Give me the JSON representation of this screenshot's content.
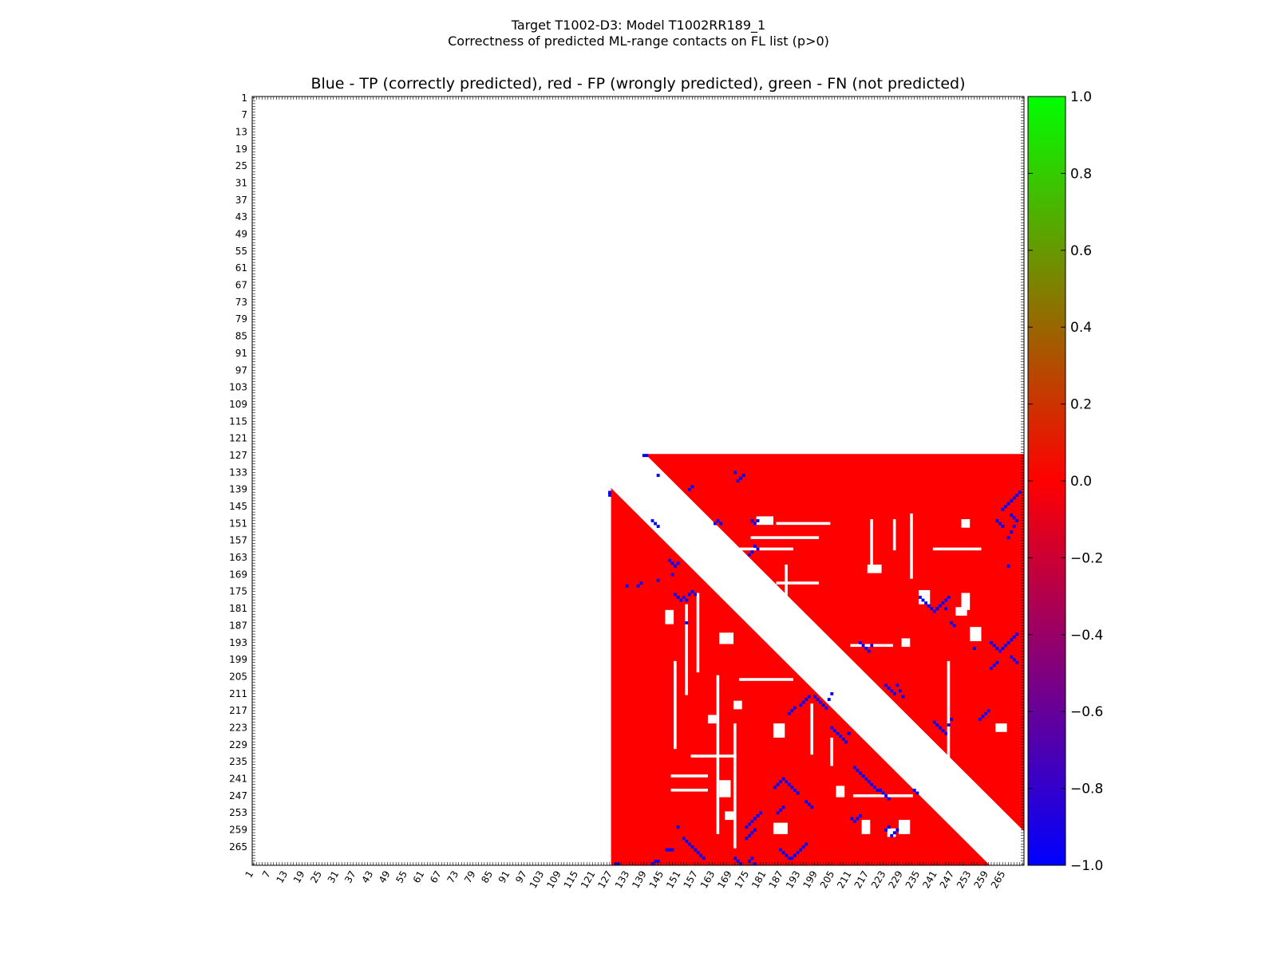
{
  "suptitle": {
    "line1": "Target T1002-D3: Model T1002RR189_1",
    "line2": "Correctness of predicted ML-range contacts on FL list (p>0)"
  },
  "chart_data": {
    "type": "heatmap",
    "title": "Blue - TP (correctly predicted), red - FP (wrongly predicted), green - FN (not predicted)",
    "xlabel": "",
    "ylabel": "",
    "x_range": [
      1,
      271
    ],
    "y_range": [
      1,
      271
    ],
    "tick_labels": [
      1,
      7,
      13,
      19,
      25,
      31,
      37,
      43,
      49,
      55,
      61,
      67,
      73,
      79,
      85,
      91,
      97,
      103,
      109,
      115,
      121,
      127,
      133,
      139,
      145,
      151,
      157,
      163,
      169,
      175,
      181,
      187,
      193,
      199,
      205,
      211,
      217,
      223,
      229,
      235,
      241,
      247,
      253,
      259,
      265
    ],
    "region_start": 127,
    "region_end": 271,
    "min_separation": 12,
    "colorbar": {
      "min": -1.0,
      "max": 1.0,
      "ticks": [
        "1.0",
        "0.8",
        "0.6",
        "0.4",
        "0.2",
        "0.0",
        "−0.2",
        "−0.4",
        "−0.6",
        "−0.8",
        "−1.0"
      ],
      "colors": [
        "#0000ff",
        "#ff0000",
        "#00ff00"
      ]
    },
    "categories": {
      "TP": {
        "value": -1,
        "color": "#0000ff"
      },
      "FP": {
        "value": 0,
        "color": "#ff0000"
      },
      "FN": {
        "value": 1,
        "color": "#00ff00"
      }
    },
    "white_blobs": [
      [
        178,
        149,
        6,
        3
      ],
      [
        165,
        190,
        5,
        4
      ],
      [
        146,
        182,
        3,
        5
      ],
      [
        165,
        242,
        4,
        6
      ],
      [
        184,
        222,
        4,
        5
      ],
      [
        184,
        257,
        5,
        4
      ],
      [
        217,
        166,
        5,
        3
      ],
      [
        215,
        256,
        3,
        5
      ],
      [
        235,
        175,
        4,
        5
      ],
      [
        248,
        181,
        4,
        3
      ],
      [
        253,
        188,
        4,
        5
      ],
      [
        250,
        176,
        3,
        6
      ],
      [
        240,
        235,
        3,
        4
      ],
      [
        228,
        256,
        4,
        5
      ],
      [
        229,
        192,
        3,
        3
      ],
      [
        206,
        244,
        3,
        4
      ],
      [
        161,
        219,
        3,
        3
      ],
      [
        262,
        222,
        4,
        3
      ],
      [
        250,
        150,
        3,
        3
      ],
      [
        224,
        259,
        3,
        3
      ],
      [
        167,
        253,
        3,
        3
      ],
      [
        170,
        214,
        3,
        3
      ]
    ],
    "white_streaks_h": [
      [
        185,
        151,
        203,
        152
      ],
      [
        176,
        156,
        199,
        157
      ],
      [
        185,
        172,
        199,
        173
      ],
      [
        211,
        194,
        225,
        195
      ],
      [
        148,
        240,
        160,
        241
      ],
      [
        148,
        245,
        160,
        246
      ],
      [
        170,
        160,
        190,
        161
      ],
      [
        240,
        160,
        256,
        161
      ],
      [
        212,
        247,
        232,
        248
      ],
      [
        172,
        206,
        190,
        207
      ],
      [
        155,
        233,
        170,
        234
      ]
    ],
    "white_streaks_v": [
      [
        149,
        200,
        230
      ],
      [
        153,
        180,
        211
      ],
      [
        157,
        176,
        203
      ],
      [
        164,
        205,
        260
      ],
      [
        170,
        222,
        265
      ],
      [
        188,
        166,
        178
      ],
      [
        232,
        148,
        170
      ],
      [
        218,
        150,
        166
      ],
      [
        226,
        150,
        160
      ],
      [
        245,
        200,
        240
      ],
      [
        197,
        215,
        232
      ],
      [
        204,
        227,
        236
      ],
      [
        251,
        243,
        262
      ]
    ],
    "tp_points": [
      [
        138,
        127
      ],
      [
        139,
        127
      ],
      [
        126,
        140
      ],
      [
        126,
        141
      ],
      [
        141,
        150
      ],
      [
        142,
        151
      ],
      [
        143,
        152
      ],
      [
        154,
        139
      ],
      [
        155,
        138
      ],
      [
        143,
        134
      ],
      [
        163,
        151
      ],
      [
        164,
        150
      ],
      [
        165,
        151
      ],
      [
        170,
        133
      ],
      [
        171,
        136
      ],
      [
        172,
        135
      ],
      [
        173,
        134
      ],
      [
        176,
        150
      ],
      [
        177,
        151
      ],
      [
        178,
        150
      ],
      [
        177,
        159
      ],
      [
        178,
        160
      ],
      [
        176,
        161
      ],
      [
        175,
        162
      ],
      [
        147,
        164
      ],
      [
        148,
        165
      ],
      [
        149,
        166
      ],
      [
        150,
        165
      ],
      [
        148,
        169
      ],
      [
        143,
        171
      ],
      [
        137,
        172
      ],
      [
        132,
        173
      ],
      [
        136,
        173
      ],
      [
        149,
        176
      ],
      [
        150,
        177
      ],
      [
        151,
        178
      ],
      [
        152,
        177
      ],
      [
        153,
        178
      ],
      [
        154,
        176
      ],
      [
        155,
        175
      ],
      [
        156,
        176
      ],
      [
        153,
        186
      ],
      [
        235,
        177
      ],
      [
        236,
        178
      ],
      [
        237,
        179
      ],
      [
        238,
        180
      ],
      [
        239,
        181
      ],
      [
        240,
        182
      ],
      [
        241,
        181
      ],
      [
        242,
        180
      ],
      [
        243,
        179
      ],
      [
        244,
        178
      ],
      [
        245,
        177
      ],
      [
        244,
        181
      ],
      [
        246,
        186
      ],
      [
        247,
        187
      ],
      [
        260,
        193
      ],
      [
        261,
        194
      ],
      [
        262,
        195
      ],
      [
        263,
        196
      ],
      [
        264,
        195
      ],
      [
        265,
        194
      ],
      [
        266,
        193
      ],
      [
        267,
        192
      ],
      [
        268,
        191
      ],
      [
        269,
        190
      ],
      [
        254,
        195
      ],
      [
        214,
        193
      ],
      [
        215,
        194
      ],
      [
        216,
        195
      ],
      [
        217,
        196
      ],
      [
        218,
        194
      ],
      [
        198,
        212
      ],
      [
        199,
        213
      ],
      [
        200,
        214
      ],
      [
        201,
        215
      ],
      [
        202,
        216
      ],
      [
        203,
        213
      ],
      [
        204,
        211
      ],
      [
        223,
        208
      ],
      [
        224,
        209
      ],
      [
        225,
        210
      ],
      [
        226,
        211
      ],
      [
        227,
        208
      ],
      [
        228,
        210
      ],
      [
        229,
        212
      ],
      [
        204,
        223
      ],
      [
        205,
        224
      ],
      [
        206,
        225
      ],
      [
        207,
        226
      ],
      [
        208,
        227
      ],
      [
        209,
        228
      ],
      [
        210,
        225
      ],
      [
        189,
        218
      ],
      [
        190,
        217
      ],
      [
        191,
        216
      ],
      [
        193,
        215
      ],
      [
        194,
        214
      ],
      [
        195,
        213
      ],
      [
        196,
        212
      ],
      [
        184,
        244
      ],
      [
        185,
        243
      ],
      [
        186,
        242
      ],
      [
        187,
        241
      ],
      [
        188,
        242
      ],
      [
        189,
        243
      ],
      [
        190,
        244
      ],
      [
        191,
        245
      ],
      [
        192,
        246
      ],
      [
        195,
        249
      ],
      [
        196,
        250
      ],
      [
        197,
        251
      ],
      [
        185,
        253
      ],
      [
        186,
        252
      ],
      [
        187,
        251
      ],
      [
        179,
        253
      ],
      [
        178,
        254
      ],
      [
        177,
        255
      ],
      [
        176,
        256
      ],
      [
        175,
        257
      ],
      [
        174,
        258
      ],
      [
        174,
        262
      ],
      [
        175,
        261
      ],
      [
        176,
        260
      ],
      [
        177,
        259
      ],
      [
        186,
        266
      ],
      [
        187,
        267
      ],
      [
        188,
        268
      ],
      [
        189,
        269
      ],
      [
        190,
        269
      ],
      [
        191,
        268
      ],
      [
        192,
        267
      ],
      [
        193,
        266
      ],
      [
        194,
        265
      ],
      [
        195,
        264
      ],
      [
        152,
        262
      ],
      [
        153,
        263
      ],
      [
        154,
        264
      ],
      [
        155,
        265
      ],
      [
        156,
        266
      ],
      [
        157,
        267
      ],
      [
        158,
        268
      ],
      [
        159,
        269
      ],
      [
        146,
        266
      ],
      [
        147,
        266
      ],
      [
        148,
        266
      ],
      [
        150,
        258
      ],
      [
        212,
        237
      ],
      [
        213,
        238
      ],
      [
        214,
        239
      ],
      [
        215,
        240
      ],
      [
        216,
        241
      ],
      [
        217,
        242
      ],
      [
        218,
        243
      ],
      [
        219,
        244
      ],
      [
        220,
        245
      ],
      [
        221,
        245
      ],
      [
        222,
        246
      ],
      [
        223,
        247
      ],
      [
        224,
        248
      ],
      [
        211,
        255
      ],
      [
        212,
        256
      ],
      [
        213,
        255
      ],
      [
        214,
        254
      ],
      [
        225,
        261
      ],
      [
        226,
        260
      ],
      [
        227,
        259
      ],
      [
        240,
        221
      ],
      [
        241,
        222
      ],
      [
        242,
        223
      ],
      [
        243,
        224
      ],
      [
        244,
        225
      ],
      [
        245,
        222
      ],
      [
        246,
        220
      ],
      [
        267,
        148
      ],
      [
        268,
        149
      ],
      [
        269,
        150
      ],
      [
        268,
        152
      ],
      [
        267,
        154
      ],
      [
        266,
        156
      ],
      [
        264,
        152
      ],
      [
        263,
        151
      ],
      [
        262,
        150
      ],
      [
        270,
        140
      ],
      [
        269,
        141
      ],
      [
        268,
        142
      ],
      [
        267,
        143
      ],
      [
        266,
        144
      ],
      [
        265,
        145
      ],
      [
        264,
        146
      ],
      [
        266,
        166
      ],
      [
        256,
        220
      ],
      [
        257,
        219
      ],
      [
        258,
        218
      ],
      [
        259,
        217
      ],
      [
        267,
        198
      ],
      [
        268,
        199
      ],
      [
        269,
        200
      ],
      [
        260,
        202
      ],
      [
        261,
        201
      ],
      [
        262,
        200
      ],
      [
        141,
        271
      ],
      [
        142,
        270
      ],
      [
        143,
        270
      ],
      [
        170,
        269
      ],
      [
        171,
        270
      ],
      [
        172,
        271
      ],
      [
        175,
        270
      ],
      [
        176,
        269
      ],
      [
        177,
        271
      ],
      [
        128,
        271
      ],
      [
        129,
        271
      ],
      [
        223,
        259
      ],
      [
        224,
        258
      ],
      [
        233,
        245
      ],
      [
        234,
        246
      ]
    ]
  }
}
